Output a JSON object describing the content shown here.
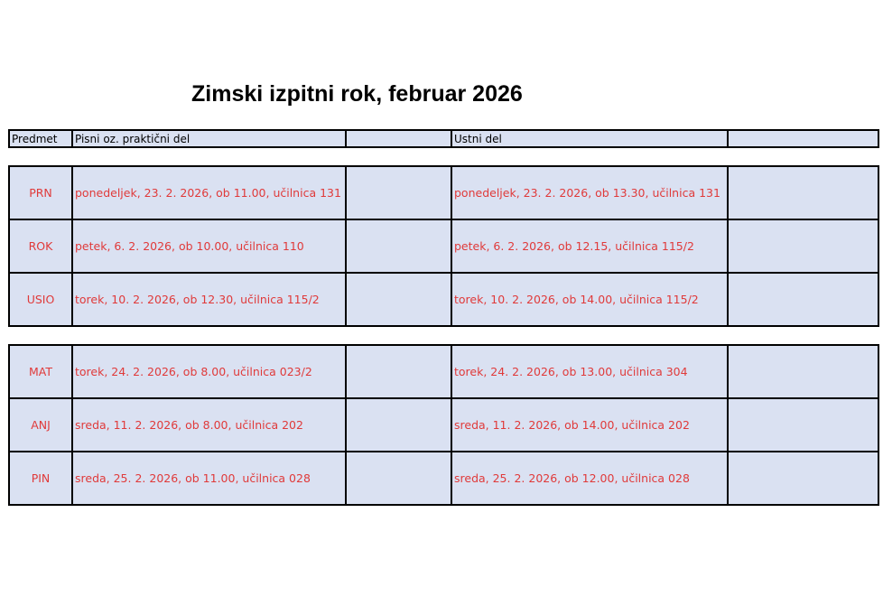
{
  "title": "Zimski izpitni rok, februar 2026",
  "header": {
    "subject": "Predmet",
    "written": "Pisni oz. praktični del",
    "oral": "Ustni del"
  },
  "groups": [
    [
      {
        "subject": "PRN",
        "written": "ponedeljek, 23. 2. 2026, ob 11.00, učilnica 131",
        "oral": "ponedeljek, 23. 2. 2026, ob 13.30, učilnica 131"
      },
      {
        "subject": "ROK",
        "written": "petek, 6. 2. 2026, ob 10.00, učilnica 110",
        "oral": "petek, 6. 2. 2026, ob 12.15, učilnica 115/2"
      },
      {
        "subject": "USIO",
        "written": "torek, 10. 2. 2026, ob 12.30, učilnica 115/2",
        "oral": "torek, 10. 2. 2026, ob 14.00, učilnica 115/2"
      }
    ],
    [
      {
        "subject": "MAT",
        "written": "torek, 24. 2. 2026, ob 8.00, učilnica 023/2",
        "oral": "torek, 24. 2. 2026, ob 13.00, učilnica 304"
      },
      {
        "subject": "ANJ",
        "written": "sreda, 11. 2. 2026, ob 8.00, učilnica 202",
        "oral": "sreda, 11. 2. 2026, ob 14.00, učilnica 202"
      },
      {
        "subject": "PIN",
        "written": "sreda, 25. 2. 2026, ob 11.00, učilnica 028",
        "oral": "sreda, 25. 2. 2026, ob 12.00, učilnica 028"
      }
    ]
  ],
  "colors": {
    "cell_bg": "#dae1f2",
    "entry_text": "#e03a3a"
  }
}
